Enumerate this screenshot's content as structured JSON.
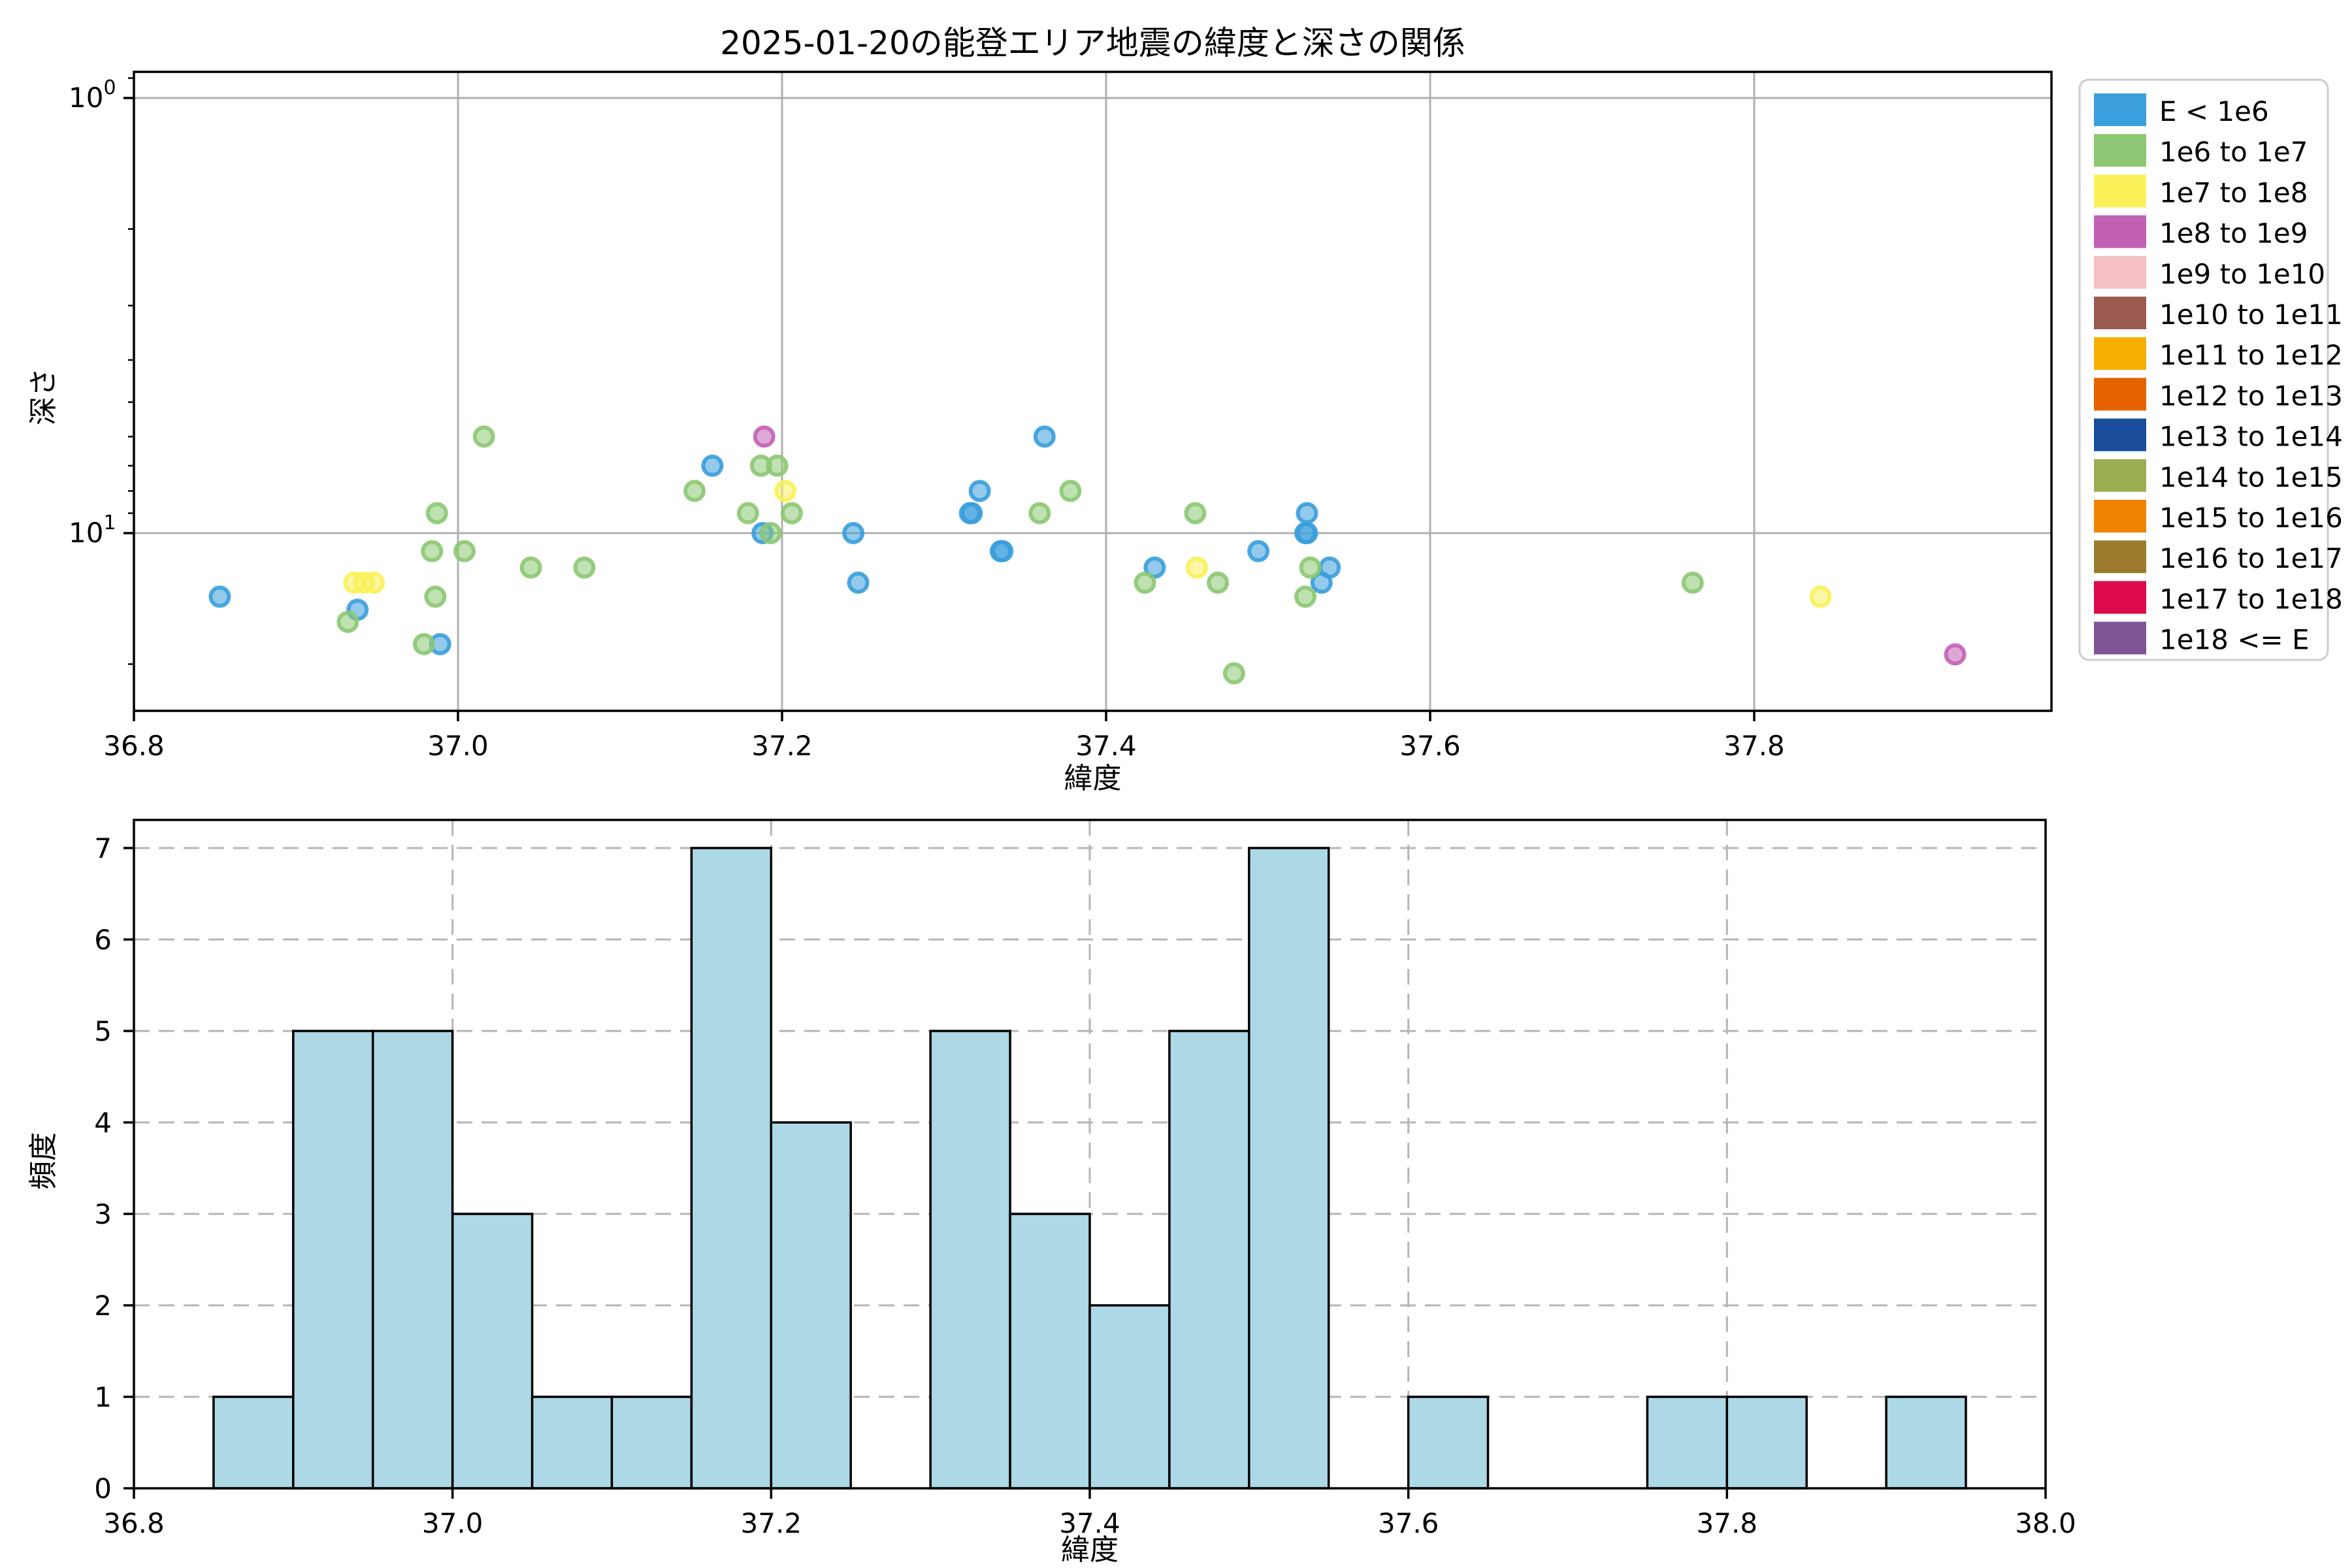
{
  "figure": {
    "title": "2025-01-20の能登エリア地震の緯度と深さの関係",
    "background": "#ffffff"
  },
  "colors": {
    "grid_solid": "#b0b0b0",
    "grid_dashed": "#b5b5b5",
    "spine": "#000000",
    "hist_fill": "#ADD8E6",
    "hist_edge": "#000000"
  },
  "legend": {
    "position": "outside-right",
    "entries": [
      {
        "label": "E < 1e6",
        "color": "#3A9FDC"
      },
      {
        "label": "1e6 to 1e7",
        "color": "#8CC873"
      },
      {
        "label": "1e7 to 1e8",
        "color": "#FAF159"
      },
      {
        "label": "1e8 to 1e9",
        "color": "#C360B4"
      },
      {
        "label": "1e9 to 1e10",
        "color": "#F5C0C4"
      },
      {
        "label": "1e10 to 1e11",
        "color": "#9B5B50"
      },
      {
        "label": "1e11 to 1e12",
        "color": "#F4AF00"
      },
      {
        "label": "1e12 to 1e13",
        "color": "#E66200"
      },
      {
        "label": "1e13 to 1e14",
        "color": "#1A4C9C"
      },
      {
        "label": "1e14 to 1e15",
        "color": "#9AAD53"
      },
      {
        "label": "1e15 to 1e16",
        "color": "#F08300"
      },
      {
        "label": "1e16 to 1e17",
        "color": "#9C7B2E"
      },
      {
        "label": "1e17 to 1e18",
        "color": "#DE0A4C"
      },
      {
        "label": "1e18 <= E",
        "color": "#7D5595"
      }
    ]
  },
  "chart_data": [
    {
      "type": "scatter",
      "title": "2025-01-20の能登エリア地震の緯度と深さの関係",
      "xlabel": "緯度",
      "ylabel": "深さ",
      "xlim": [
        36.8,
        37.984
      ],
      "x_ticks": [
        36.8,
        37.0,
        37.2,
        37.4,
        37.6,
        37.8
      ],
      "yscale": "log",
      "y_inverted": true,
      "ylim_top": 0.87,
      "ylim_bottom": 25.7,
      "y_major_ticks": [
        1,
        10
      ],
      "y_major_tick_labels": [
        "10⁰",
        "10¹"
      ],
      "y_minor_ticks": [
        0.9,
        2,
        3,
        4,
        5,
        6,
        7,
        8,
        9,
        20
      ],
      "grid": "solid",
      "marker_alpha": 0.55,
      "series": [
        {
          "name": "E < 1e6",
          "color": "#3A9FDC",
          "points": [
            [
              36.853,
              14
            ],
            [
              36.938,
              15
            ],
            [
              36.989,
              18
            ],
            [
              37.157,
              7
            ],
            [
              37.188,
              10
            ],
            [
              37.244,
              10
            ],
            [
              37.247,
              13
            ],
            [
              37.316,
              9
            ],
            [
              37.317,
              9
            ],
            [
              37.322,
              8
            ],
            [
              37.335,
              11
            ],
            [
              37.336,
              11
            ],
            [
              37.362,
              6
            ],
            [
              37.43,
              12
            ],
            [
              37.494,
              11
            ],
            [
              37.523,
              10
            ],
            [
              37.524,
              10
            ],
            [
              37.524,
              9
            ],
            [
              37.538,
              12
            ],
            [
              37.533,
              13
            ]
          ]
        },
        {
          "name": "1e6 to 1e7",
          "color": "#8CC873",
          "points": [
            [
              36.932,
              16
            ],
            [
              36.979,
              18
            ],
            [
              36.984,
              11
            ],
            [
              36.986,
              14
            ],
            [
              36.987,
              9
            ],
            [
              37.004,
              11
            ],
            [
              37.016,
              6
            ],
            [
              37.045,
              12
            ],
            [
              37.078,
              12
            ],
            [
              37.146,
              8
            ],
            [
              37.179,
              9
            ],
            [
              37.187,
              7
            ],
            [
              37.193,
              10
            ],
            [
              37.197,
              7
            ],
            [
              37.206,
              9
            ],
            [
              37.359,
              9
            ],
            [
              37.378,
              8
            ],
            [
              37.424,
              13
            ],
            [
              37.455,
              9
            ],
            [
              37.469,
              13
            ],
            [
              37.479,
              21
            ],
            [
              37.526,
              12
            ],
            [
              37.523,
              14
            ],
            [
              37.762,
              13
            ]
          ]
        },
        {
          "name": "1e7 to 1e8",
          "color": "#FAF159",
          "points": [
            [
              36.936,
              13
            ],
            [
              36.942,
              13
            ],
            [
              36.948,
              13
            ],
            [
              37.202,
              8
            ],
            [
              37.456,
              12
            ],
            [
              37.841,
              14
            ]
          ]
        },
        {
          "name": "1e8 to 1e9",
          "color": "#C360B4",
          "points": [
            [
              37.189,
              6
            ],
            [
              37.924,
              19
            ]
          ]
        }
      ]
    },
    {
      "type": "bar",
      "xlabel": "緯度",
      "ylabel": "頻度",
      "xlim": [
        36.8,
        38.0
      ],
      "x_ticks": [
        36.8,
        37.0,
        37.2,
        37.4,
        37.6,
        37.8,
        38.0
      ],
      "ylim": [
        0,
        7.25
      ],
      "y_ticks": [
        0,
        1,
        2,
        3,
        4,
        5,
        6,
        7
      ],
      "grid": "dashed",
      "bin_start": 36.85,
      "bin_width": 0.05,
      "counts": [
        1,
        5,
        5,
        3,
        1,
        1,
        7,
        4,
        0,
        5,
        3,
        2,
        5,
        7,
        0,
        1,
        0,
        0,
        1,
        1,
        0,
        1
      ]
    }
  ]
}
